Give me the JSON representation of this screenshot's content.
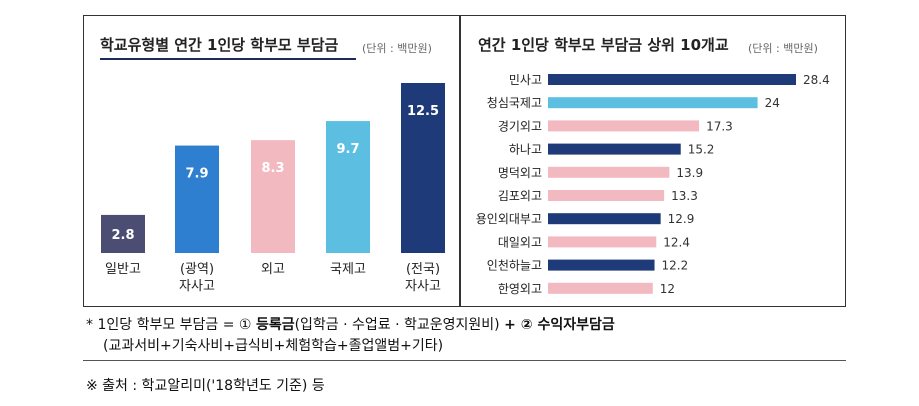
{
  "left_panel": {
    "title": "학교유형별 연간 1인당 학부모 부담금",
    "unit": "(단위 : 백만원)"
  },
  "right_panel": {
    "title": "연간 1인당 학부모 부담금 상위 10개교",
    "unit": "(단위 : 백만원)"
  },
  "chart_data": [
    {
      "type": "bar",
      "title": "학교유형별 연간 1인당 학부모 부담금",
      "unit": "(단위 : 백만원)",
      "categories": [
        [
          "일반고"
        ],
        [
          "(광역)",
          "자사고"
        ],
        [
          "외고"
        ],
        [
          "국제고"
        ],
        [
          "(전국)",
          "자사고"
        ]
      ],
      "values": [
        2.8,
        7.9,
        8.3,
        9.7,
        12.5
      ],
      "labels": [
        "2.8",
        "7.9",
        "8.3",
        "9.7",
        "12.5"
      ],
      "colors": [
        "#4b4d72",
        "#2f7fd0",
        "#f3b9c0",
        "#5cbfe2",
        "#1f3a78"
      ],
      "ylim": [
        0,
        12.5
      ]
    },
    {
      "type": "bar",
      "orientation": "horizontal",
      "title": "연간 1인당 학부모 부담금 상위 10개교",
      "unit": "(단위 : 백만원)",
      "categories": [
        "민사고",
        "청심국제고",
        "경기외고",
        "하나고",
        "명덕외고",
        "김포외고",
        "용인외대부고",
        "대일외고",
        "인천하늘고",
        "한영외고"
      ],
      "values": [
        28.4,
        24,
        17.3,
        15.2,
        13.9,
        13.3,
        12.9,
        12.4,
        12.2,
        12
      ],
      "labels": [
        "28.4",
        "24",
        "17.3",
        "15.2",
        "13.9",
        "13.3",
        "12.9",
        "12.4",
        "12.2",
        "12"
      ],
      "colors": [
        "#1f3a78",
        "#5cbfe2",
        "#f3b9c0",
        "#1f3a78",
        "#f3b9c0",
        "#f3b9c0",
        "#1f3a78",
        "#f3b9c0",
        "#1f3a78",
        "#f3b9c0"
      ],
      "xlim": [
        0,
        28.4
      ]
    }
  ],
  "footnote": {
    "line1_a": "* 1인당 학부모 부담금 = ① ",
    "line1_b": "등록금",
    "line1_c": "(입학금 · 수업료 · 학교운영지원비) ",
    "line1_d": "+ ② ",
    "line1_e": "수익자부담금",
    "line2": "(교과서비+기숙사비+급식비+체험학습+졸업앨범+기타)",
    "source": "※ 출처 : 학교알리미('18학년도 기준) 등"
  }
}
